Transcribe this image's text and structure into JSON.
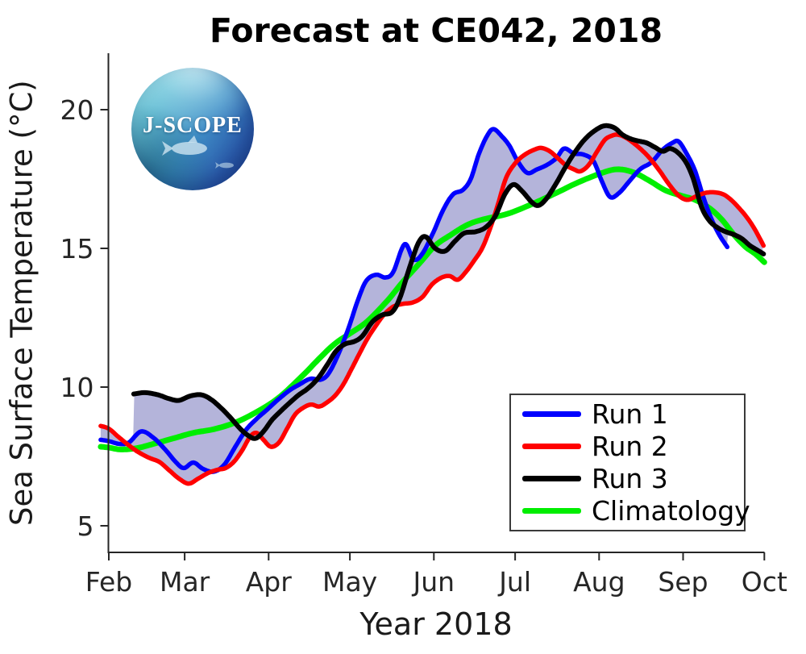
{
  "title": "Forecast at CE042, 2018",
  "xlabel": "Year 2018",
  "ylabel": "Sea Surface Temperature (°C)",
  "logo": {
    "text": "J-SCOPE"
  },
  "legend": {
    "position": "bottom-right",
    "items": [
      {
        "label": "Run 1",
        "color": "#0000ff"
      },
      {
        "label": "Run 2",
        "color": "#ff0000"
      },
      {
        "label": "Run 3",
        "color": "#000000"
      },
      {
        "label": "Climatology",
        "color": "#00ee00"
      }
    ]
  },
  "chart_data": {
    "type": "line",
    "title": "Forecast at CE042, 2018",
    "xlabel": "Year 2018",
    "ylabel": "Sea Surface Temperature (°C)",
    "x_unit": "days since Feb 1 2018",
    "x_tick_labels": [
      "Feb",
      "Mar",
      "Apr",
      "May",
      "Jun",
      "Jul",
      "Aug",
      "Sep",
      "Oct"
    ],
    "x_tick_days": [
      0,
      28,
      59,
      89,
      120,
      150,
      181,
      212,
      242
    ],
    "y_ticks": [
      5,
      10,
      15,
      20
    ],
    "ylim": [
      4.0,
      22.0
    ],
    "grid": false,
    "envelope": {
      "note": "shaded band = min to max of Runs 1-3",
      "fill": "#b4b4da"
    },
    "series": [
      {
        "name": "Run 1",
        "color": "#0000ff",
        "role": "run",
        "points": [
          [
            -3,
            8.1
          ],
          [
            0,
            8.05
          ],
          [
            3.9,
            7.95
          ],
          [
            7.4,
            8.0
          ],
          [
            11.9,
            8.4
          ],
          [
            16.4,
            8.18
          ],
          [
            20.8,
            7.75
          ],
          [
            24.7,
            7.3
          ],
          [
            27.7,
            7.08
          ],
          [
            31.2,
            7.28
          ],
          [
            34.8,
            7.05
          ],
          [
            38.7,
            6.95
          ],
          [
            42.6,
            7.2
          ],
          [
            46.7,
            7.85
          ],
          [
            50.6,
            8.45
          ],
          [
            54.5,
            8.85
          ],
          [
            58,
            9.15
          ],
          [
            62.5,
            9.55
          ],
          [
            67,
            9.9
          ],
          [
            70.5,
            10.1
          ],
          [
            74.4,
            10.3
          ],
          [
            78.3,
            10.27
          ],
          [
            81.2,
            10.5
          ],
          [
            84.8,
            11.2
          ],
          [
            88.4,
            12.1
          ],
          [
            92.2,
            13.2
          ],
          [
            95.2,
            13.85
          ],
          [
            98.8,
            14.05
          ],
          [
            102.1,
            13.95
          ],
          [
            105,
            14.15
          ],
          [
            109.2,
            15.15
          ],
          [
            112.5,
            14.6
          ],
          [
            115.7,
            14.8
          ],
          [
            119.9,
            15.6
          ],
          [
            123.5,
            16.4
          ],
          [
            127.1,
            16.95
          ],
          [
            130.6,
            17.1
          ],
          [
            133.6,
            17.5
          ],
          [
            136.6,
            18.4
          ],
          [
            139.6,
            19.05
          ],
          [
            142,
            19.3
          ],
          [
            145,
            19.05
          ],
          [
            147.9,
            18.7
          ],
          [
            150.9,
            18.15
          ],
          [
            154.5,
            17.72
          ],
          [
            158.1,
            17.85
          ],
          [
            161.6,
            18.0
          ],
          [
            165.2,
            18.25
          ],
          [
            168.1,
            18.6
          ],
          [
            171.7,
            18.42
          ],
          [
            175.3,
            18.38
          ],
          [
            178.9,
            18.15
          ],
          [
            182.1,
            17.4
          ],
          [
            185.1,
            16.85
          ],
          [
            188.4,
            17.0
          ],
          [
            192,
            17.4
          ],
          [
            196.1,
            17.85
          ],
          [
            200.3,
            18.1
          ],
          [
            204.4,
            18.55
          ],
          [
            208,
            18.8
          ],
          [
            210.4,
            18.85
          ],
          [
            213.4,
            18.4
          ],
          [
            216.4,
            17.8
          ],
          [
            219.3,
            16.9
          ],
          [
            222.3,
            16.1
          ],
          [
            225.3,
            15.5
          ],
          [
            228.3,
            15.05
          ]
        ]
      },
      {
        "name": "Run 2",
        "color": "#ff0000",
        "role": "run",
        "points": [
          [
            -3,
            8.6
          ],
          [
            0,
            8.5
          ],
          [
            3.6,
            8.2
          ],
          [
            7.4,
            7.9
          ],
          [
            11,
            7.65
          ],
          [
            14.9,
            7.45
          ],
          [
            18.7,
            7.3
          ],
          [
            22.3,
            7.0
          ],
          [
            25.9,
            6.7
          ],
          [
            29.5,
            6.52
          ],
          [
            33,
            6.7
          ],
          [
            36.6,
            6.9
          ],
          [
            40.2,
            7.02
          ],
          [
            43.1,
            7.08
          ],
          [
            46.1,
            7.3
          ],
          [
            49.1,
            7.7
          ],
          [
            52.1,
            8.2
          ],
          [
            54.5,
            8.35
          ],
          [
            57.1,
            8.1
          ],
          [
            59.8,
            7.85
          ],
          [
            62.8,
            8.0
          ],
          [
            65.8,
            8.5
          ],
          [
            68.7,
            9.0
          ],
          [
            71.7,
            9.25
          ],
          [
            74.7,
            9.37
          ],
          [
            77.7,
            9.3
          ],
          [
            80.6,
            9.45
          ],
          [
            83.6,
            9.7
          ],
          [
            86.6,
            10.1
          ],
          [
            89.6,
            10.65
          ],
          [
            92.5,
            11.2
          ],
          [
            95.5,
            11.75
          ],
          [
            98.5,
            12.2
          ],
          [
            101.5,
            12.6
          ],
          [
            105,
            12.9
          ],
          [
            108.6,
            13.0
          ],
          [
            112.2,
            13.05
          ],
          [
            115.8,
            13.25
          ],
          [
            119.3,
            13.7
          ],
          [
            122.9,
            13.95
          ],
          [
            125.9,
            14.0
          ],
          [
            128.8,
            13.87
          ],
          [
            131.8,
            14.15
          ],
          [
            134.8,
            14.55
          ],
          [
            137.8,
            15.0
          ],
          [
            140.7,
            15.7
          ],
          [
            143.7,
            16.6
          ],
          [
            146.7,
            17.55
          ],
          [
            150.3,
            18.1
          ],
          [
            153.9,
            18.4
          ],
          [
            157.4,
            18.57
          ],
          [
            159.8,
            18.62
          ],
          [
            162.8,
            18.5
          ],
          [
            165.8,
            18.25
          ],
          [
            168.7,
            18.0
          ],
          [
            171.7,
            17.85
          ],
          [
            174.1,
            17.78
          ],
          [
            177.1,
            18.0
          ],
          [
            180,
            18.45
          ],
          [
            183,
            18.9
          ],
          [
            185.4,
            19.05
          ],
          [
            187.8,
            19.1
          ],
          [
            190.7,
            19.0
          ],
          [
            193.7,
            18.8
          ],
          [
            196.7,
            18.55
          ],
          [
            199.7,
            18.25
          ],
          [
            203.3,
            17.8
          ],
          [
            206.9,
            17.3
          ],
          [
            210.4,
            16.9
          ],
          [
            213.6,
            16.75
          ],
          [
            216.9,
            16.88
          ],
          [
            220.2,
            17.0
          ],
          [
            223.5,
            17.02
          ],
          [
            226.8,
            16.95
          ],
          [
            229.7,
            16.75
          ],
          [
            232.7,
            16.45
          ],
          [
            235.7,
            16.1
          ],
          [
            238.4,
            15.7
          ],
          [
            241.7,
            15.1
          ]
        ]
      },
      {
        "name": "Run 3",
        "color": "#000000",
        "role": "run",
        "points": [
          [
            9.2,
            9.75
          ],
          [
            13.4,
            9.8
          ],
          [
            18.2,
            9.72
          ],
          [
            22.3,
            9.58
          ],
          [
            25.9,
            9.52
          ],
          [
            30.1,
            9.68
          ],
          [
            34.2,
            9.72
          ],
          [
            37.8,
            9.55
          ],
          [
            41.4,
            9.25
          ],
          [
            44.9,
            8.9
          ],
          [
            48.5,
            8.5
          ],
          [
            51.5,
            8.25
          ],
          [
            54.2,
            8.15
          ],
          [
            57.1,
            8.4
          ],
          [
            60.1,
            8.8
          ],
          [
            63.1,
            9.1
          ],
          [
            66.4,
            9.4
          ],
          [
            69.9,
            9.7
          ],
          [
            73.5,
            9.95
          ],
          [
            77.1,
            10.3
          ],
          [
            80.6,
            10.8
          ],
          [
            83.9,
            11.3
          ],
          [
            87.2,
            11.55
          ],
          [
            90.8,
            11.65
          ],
          [
            93.7,
            11.85
          ],
          [
            97.3,
            12.35
          ],
          [
            100.9,
            12.6
          ],
          [
            104.5,
            12.7
          ],
          [
            107.4,
            13.2
          ],
          [
            111,
            14.3
          ],
          [
            114.3,
            15.2
          ],
          [
            117,
            15.42
          ],
          [
            120.5,
            15.0
          ],
          [
            124.1,
            14.9
          ],
          [
            127.7,
            15.25
          ],
          [
            131.2,
            15.55
          ],
          [
            135.4,
            15.6
          ],
          [
            139,
            15.75
          ],
          [
            142.6,
            16.15
          ],
          [
            146.2,
            16.95
          ],
          [
            149.4,
            17.3
          ],
          [
            152.7,
            17.05
          ],
          [
            156.3,
            16.65
          ],
          [
            158.7,
            16.55
          ],
          [
            161.6,
            16.8
          ],
          [
            165.2,
            17.35
          ],
          [
            168.7,
            17.95
          ],
          [
            172.3,
            18.5
          ],
          [
            175.9,
            18.95
          ],
          [
            179.5,
            19.25
          ],
          [
            183,
            19.42
          ],
          [
            186.6,
            19.35
          ],
          [
            189.6,
            19.1
          ],
          [
            192.6,
            18.95
          ],
          [
            195.6,
            18.87
          ],
          [
            198.6,
            18.8
          ],
          [
            201.5,
            18.65
          ],
          [
            204.5,
            18.5
          ],
          [
            207.2,
            18.6
          ],
          [
            210.1,
            18.45
          ],
          [
            213.1,
            18.1
          ],
          [
            215.8,
            17.5
          ],
          [
            218.8,
            16.5
          ],
          [
            221.7,
            16.0
          ],
          [
            224.7,
            15.75
          ],
          [
            227.7,
            15.6
          ],
          [
            230.7,
            15.5
          ],
          [
            233.7,
            15.35
          ],
          [
            236.7,
            15.1
          ],
          [
            239.7,
            14.92
          ],
          [
            241.7,
            14.8
          ]
        ]
      },
      {
        "name": "Climatology",
        "color": "#00ee00",
        "role": "climatology",
        "points": [
          [
            -3,
            7.85
          ],
          [
            0,
            7.82
          ],
          [
            4.5,
            7.75
          ],
          [
            10.4,
            7.8
          ],
          [
            16.4,
            7.95
          ],
          [
            23.8,
            8.15
          ],
          [
            31.2,
            8.35
          ],
          [
            38.7,
            8.48
          ],
          [
            46.1,
            8.7
          ],
          [
            53.6,
            9.05
          ],
          [
            62.5,
            9.6
          ],
          [
            71.4,
            10.4
          ],
          [
            77.4,
            11.0
          ],
          [
            83.3,
            11.55
          ],
          [
            89.3,
            11.95
          ],
          [
            95.2,
            12.35
          ],
          [
            102.7,
            13.1
          ],
          [
            108.6,
            13.8
          ],
          [
            114.6,
            14.45
          ],
          [
            120.5,
            15.1
          ],
          [
            126.5,
            15.5
          ],
          [
            132.4,
            15.85
          ],
          [
            138.4,
            16.05
          ],
          [
            147.3,
            16.25
          ],
          [
            156.3,
            16.6
          ],
          [
            165.2,
            17.0
          ],
          [
            172.6,
            17.35
          ],
          [
            181.5,
            17.7
          ],
          [
            187.5,
            17.85
          ],
          [
            193.4,
            17.75
          ],
          [
            199.4,
            17.45
          ],
          [
            205.3,
            17.1
          ],
          [
            211.3,
            16.9
          ],
          [
            216.4,
            16.75
          ],
          [
            221.7,
            16.45
          ],
          [
            226.2,
            16.05
          ],
          [
            230.7,
            15.5
          ],
          [
            235.1,
            15.05
          ],
          [
            238.7,
            14.8
          ],
          [
            242,
            14.5
          ]
        ]
      }
    ]
  }
}
